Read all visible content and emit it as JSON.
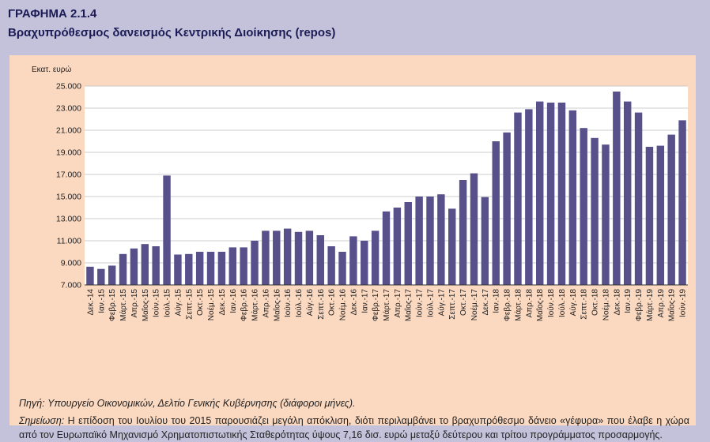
{
  "header": {
    "figure_number": "ΓΡΑΦΗΜΑ 2.1.4",
    "title": "Βραχυπρόθεσμος δανεισμός Κεντρικής Διοίκησης (repos)"
  },
  "chart_data": {
    "type": "bar",
    "title": "Βραχυπρόθεσμος δανεισμός Κεντρικής Διοίκησης (repos)",
    "ylabel": "Εκατ. ευρώ",
    "xlabel": "",
    "ylim": [
      7000,
      25000
    ],
    "yticks": [
      7000,
      9000,
      11000,
      13000,
      15000,
      17000,
      19000,
      21000,
      23000,
      25000
    ],
    "ytick_labels": [
      "7.000",
      "9.000",
      "11.000",
      "13.000",
      "15.000",
      "17.000",
      "19.000",
      "21.000",
      "23.000",
      "25.000"
    ],
    "grid": true,
    "bar_color": "#57508b",
    "categories": [
      "Δεκ.-14",
      "Ιαν.-15",
      "Φεβρ.-15",
      "Μάρτ.-15",
      "Απρ.-15",
      "Μαΐος-15",
      "Ιούν.-15",
      "Ιούλ.-15",
      "Αύγ.-15",
      "Σεπτ.-15",
      "Οκτ.-15",
      "Νοέμ.-15",
      "Δεκ.-15",
      "Ιαν.-16",
      "Φεβρ.-16",
      "Μάρτ.-16",
      "Απρ.-16",
      "Μαΐος-16",
      "Ιούν.-16",
      "Ιούλ.-16",
      "Αύγ.-16",
      "Σεπτ.-16",
      "Οκτ.-16",
      "Νοέμ.-16",
      "Δεκ.-16",
      "Ιαν.-17",
      "Φεβρ.-17",
      "Μάρτ.-17",
      "Απρ.-17",
      "Μαΐος-17",
      "Ιούν.-17",
      "Ιούλ.-17",
      "Αύγ.-17",
      "Σεπτ.-17",
      "Οκτ.-17",
      "Νοέμ.-17",
      "Δεκ.-17",
      "Ιαν.-18",
      "Φεβρ.-18",
      "Μάρτ.-18",
      "Απρ.-18",
      "Μαΐος-18",
      "Ιούν.-18",
      "Ιούλ.-18",
      "Αύγ.-18",
      "Σεπτ.-18",
      "Οκτ.-18",
      "Νοέμ.-18",
      "Δεκ.-18",
      "Ιαν.-19",
      "Φεβρ.-19",
      "Μάρτ.-19",
      "Απρ.-19",
      "Μαΐος-19",
      "Ιούν.-19"
    ],
    "values": [
      8650,
      8450,
      8750,
      9800,
      10300,
      10700,
      10500,
      16900,
      9750,
      9800,
      10000,
      10000,
      10000,
      10400,
      10400,
      11000,
      11900,
      11900,
      12100,
      11800,
      11900,
      11500,
      10500,
      10000,
      11400,
      11000,
      11900,
      13650,
      14000,
      14500,
      15000,
      15000,
      15200,
      13900,
      16500,
      17100,
      14950,
      20000,
      20800,
      22600,
      22900,
      23600,
      23500,
      23500,
      22800,
      21200,
      20300,
      19700,
      24500,
      23600,
      22600,
      19500,
      19600,
      20600,
      21900
    ]
  },
  "notes": {
    "source_label": "Πηγή:",
    "source_text": "Υπουργείο Οικονομικών, Δελτίο Γενικής Κυβέρνησης (διάφοροι μήνες).",
    "note_label": "Σημείωση:",
    "note_text": "Η επίδοση του Ιουλίου του 2015 παρουσιάζει μεγάλη απόκλιση, διότι περιλαμβάνει το βραχυπρόθεσμο δάνειο «γέφυρα» που έλαβε η χώρα από τον Ευρωπαϊκό Μηχανισμό Χρηματοπιστωτικής Σταθερότητας ύψους 7,16 δισ. ευρώ μεταξύ δεύτερου και τρίτου προγράμματος προσαρμογής."
  }
}
